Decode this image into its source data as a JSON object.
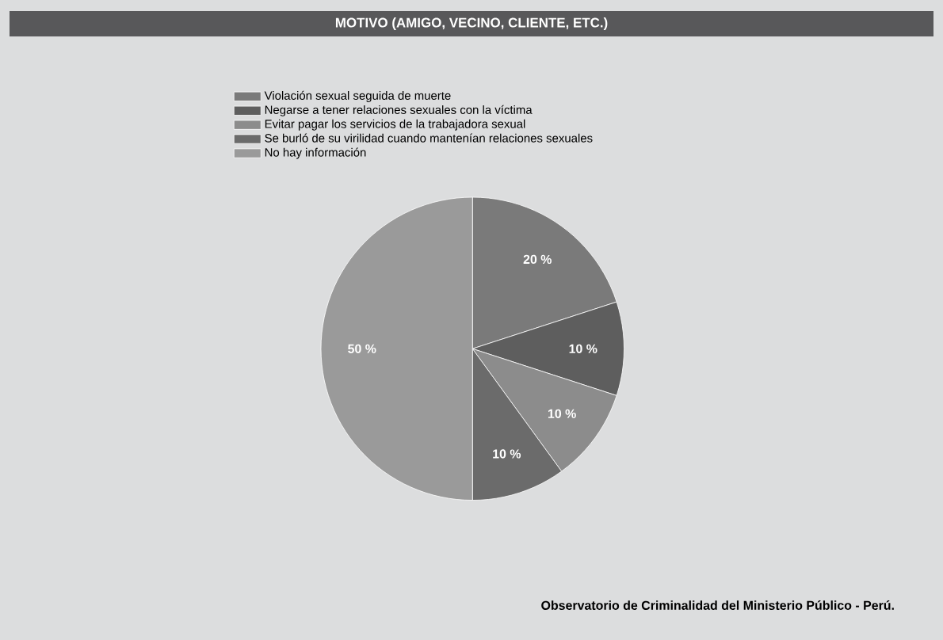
{
  "chart_data": {
    "type": "pie",
    "title": "MOTIVO (AMIGO, VECINO, CLIENTE, ETC.)",
    "categories": [
      "Violación sexual seguida de muerte",
      "Negarse a tener relaciones sexuales con la víctima",
      "Evitar pagar los servicios de la trabajadora sexual",
      "Se burló de su virilidad cuando mantenían relaciones sexuales",
      "No hay información"
    ],
    "values": [
      20,
      10,
      10,
      10,
      50
    ],
    "value_labels": [
      "20 %",
      "10 %",
      "10 %",
      "10 %",
      "50 %"
    ],
    "colors": [
      "#7a7a7a",
      "#5e5e5e",
      "#8c8c8c",
      "#6b6b6b",
      "#9a9a9a"
    ],
    "legend": "top left",
    "annotations": [
      "Observatorio de Criminalidad del Ministerio Público - Perú."
    ]
  }
}
